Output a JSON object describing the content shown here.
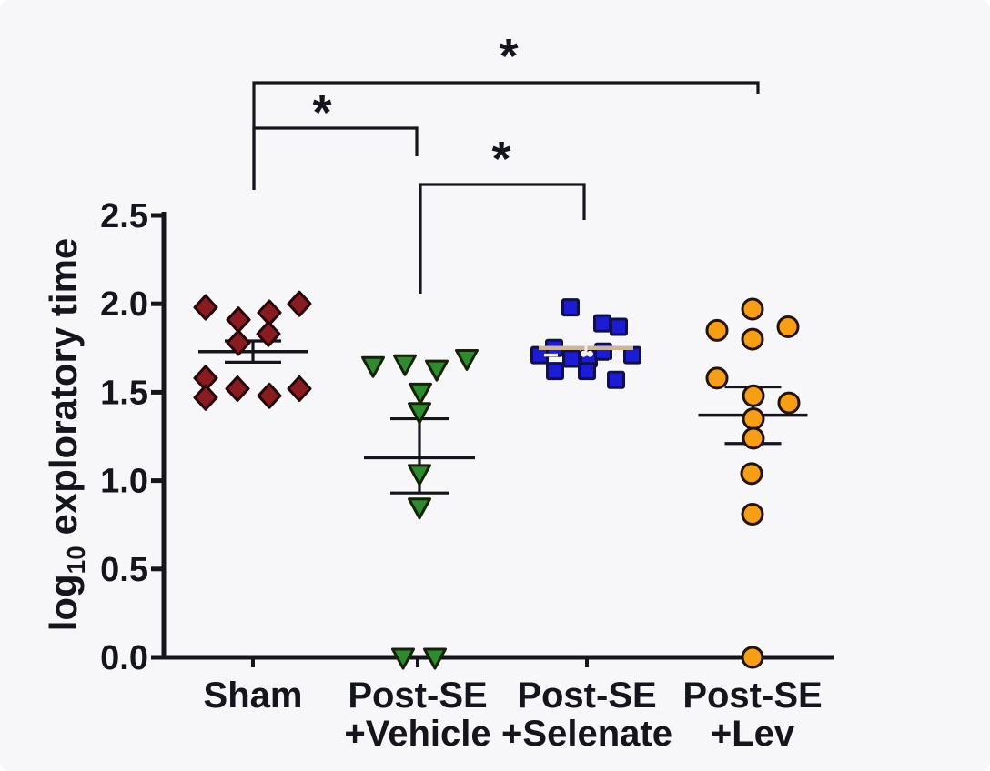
{
  "figure": {
    "background": "#f7f7f9",
    "line_color": "#15151d",
    "text_color": "#15151d"
  },
  "chart_data": {
    "type": "scatter",
    "title": "",
    "ylabel": "log10 exploratory time",
    "ylabel_rich": {
      "prefix": "log",
      "subscript": "10",
      "suffix": " exploratory time"
    },
    "xlabel": "",
    "ylim": [
      0.0,
      2.5
    ],
    "ytick_labels": [
      "0.0",
      "0.5",
      "1.0",
      "1.5",
      "2.0",
      "2.5"
    ],
    "yticks": [
      0.0,
      0.5,
      1.0,
      1.5,
      2.0,
      2.5
    ],
    "grid": false,
    "legend": "none",
    "error_bar_type": "mean with caps",
    "groups": [
      {
        "name": "Sham",
        "label_lines": [
          "Sham"
        ],
        "marker": "diamond",
        "marker_color": "#8a1b21",
        "marker_edge": "#25060a",
        "values": [
          1.98,
          1.91,
          1.95,
          2.0,
          1.78,
          1.83,
          1.58,
          1.47,
          1.52,
          1.48,
          1.52
        ],
        "jitter": [
          -52,
          -16,
          18,
          51,
          -16,
          17,
          -52,
          -52,
          -17,
          18,
          51
        ],
        "err": {
          "mean": 1.73,
          "upper": 1.79,
          "lower": 1.67
        },
        "err_style": "dark"
      },
      {
        "name": "Post-SE +Vehicle",
        "label_lines": [
          "Post-SE",
          "+Vehicle"
        ],
        "marker": "triangle-down",
        "marker_color": "#2e8b2f",
        "marker_edge": "#152208",
        "values": [
          1.65,
          1.66,
          1.63,
          1.69,
          1.5,
          1.39,
          1.04,
          0.85,
          0.0,
          0.0
        ],
        "jitter": [
          -49,
          -14,
          21,
          54,
          3,
          2,
          2,
          2,
          -16,
          19
        ],
        "err": {
          "mean": 1.13,
          "upper": 1.35,
          "lower": 0.93
        },
        "err_style": "dark"
      },
      {
        "name": "Post-SE +Selenate",
        "label_lines": [
          "Post-SE",
          "+Selenate"
        ],
        "marker": "square",
        "marker_color": "#1c1cd4",
        "marker_edge": "#101050",
        "values": [
          1.98,
          1.89,
          1.87,
          1.75,
          1.71,
          1.69,
          1.69,
          1.73,
          1.71,
          1.62,
          1.62,
          1.57
        ],
        "jitter": [
          -18,
          17,
          35,
          -36,
          -52,
          -17,
          2,
          18,
          50,
          -35,
          0,
          32
        ],
        "err": {
          "mean": 1.75,
          "upper": 1.78,
          "lower": 1.71
        },
        "err_style": "light"
      },
      {
        "name": "Post-SE +Lev",
        "label_lines": [
          "Post-SE",
          "+Lev"
        ],
        "marker": "circle",
        "marker_color": "#f59e16",
        "marker_edge": "#241305",
        "values": [
          1.97,
          1.85,
          1.87,
          1.8,
          1.58,
          1.48,
          1.44,
          1.35,
          1.24,
          1.04,
          0.81,
          0.0
        ],
        "jitter": [
          0,
          -39,
          39,
          0,
          -39,
          1,
          40,
          1,
          1,
          -1,
          0,
          0
        ],
        "err": {
          "mean": 1.37,
          "upper": 1.53,
          "lower": 1.21
        },
        "err_style": "dark"
      }
    ],
    "comparisons": [
      {
        "between": [
          "Sham",
          "Post-SE +Lev"
        ],
        "label": "*"
      },
      {
        "between": [
          "Sham",
          "Post-SE +Vehicle"
        ],
        "label": "*"
      },
      {
        "between": [
          "Post-SE +Vehicle",
          "Post-SE +Selenate"
        ],
        "label": "*"
      }
    ]
  }
}
